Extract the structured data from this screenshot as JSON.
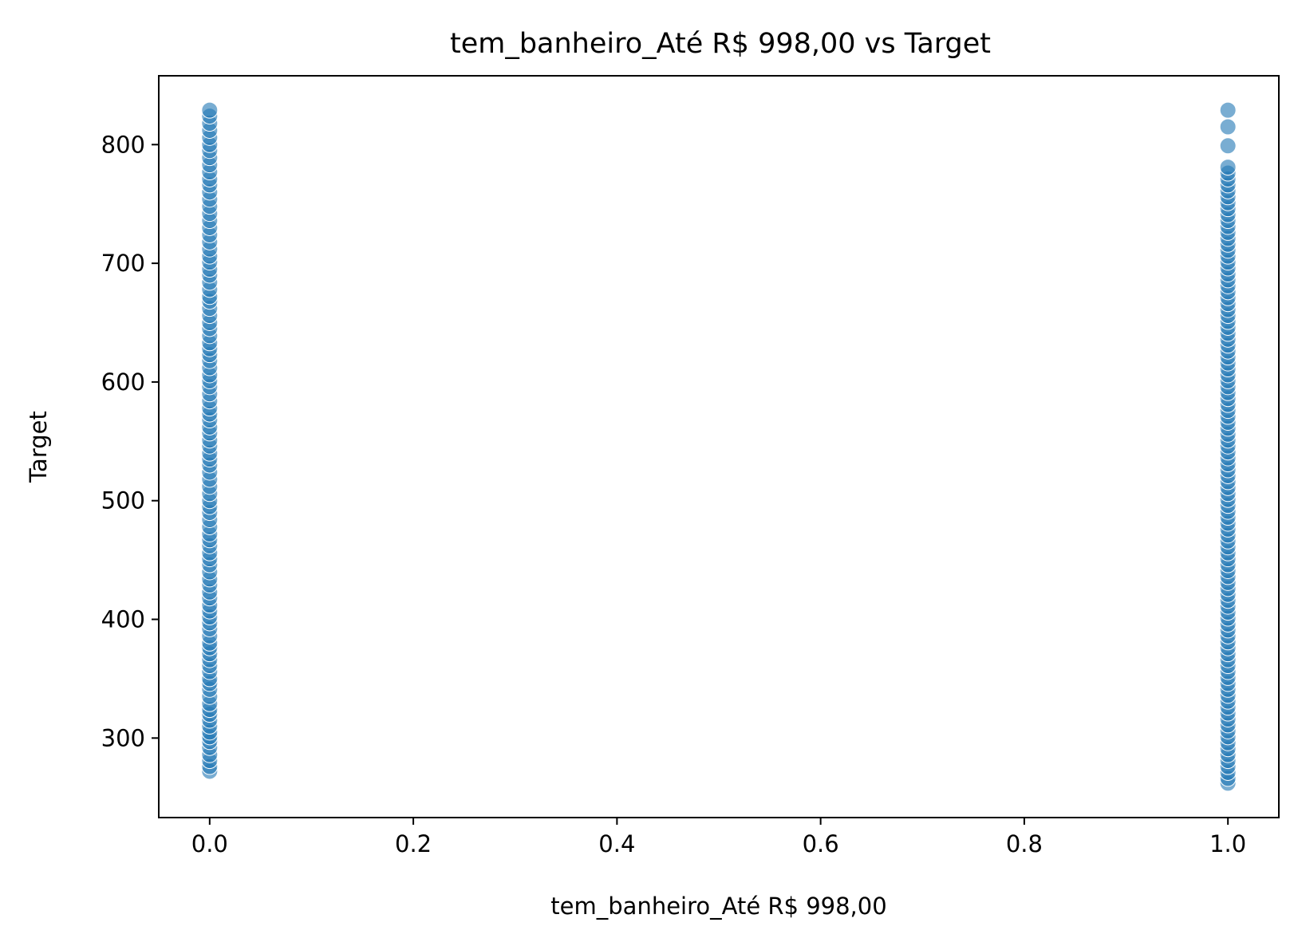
{
  "chart_data": {
    "type": "scatter",
    "title": "tem_banheiro_Até R$ 998,00 vs Target",
    "xlabel": "tem_banheiro_Até R$ 998,00",
    "ylabel": "Target",
    "xlim": [
      -0.05,
      1.05
    ],
    "ylim": [
      233,
      858
    ],
    "xticks": [
      0.0,
      0.2,
      0.4,
      0.6,
      0.8,
      1.0
    ],
    "xtick_labels": [
      "0.0",
      "0.2",
      "0.4",
      "0.6",
      "0.8",
      "1.0"
    ],
    "yticks": [
      300,
      400,
      500,
      600,
      700,
      800
    ],
    "ytick_labels": [
      "300",
      "400",
      "500",
      "600",
      "700",
      "800"
    ],
    "grid": false,
    "marker_color": "#1f77b4",
    "series": [
      {
        "x": 0.0,
        "y_values": [
          272,
          276,
          281,
          286,
          292,
          297,
          301,
          305,
          310,
          315,
          320,
          324,
          329,
          335,
          341,
          346,
          350,
          356,
          361,
          366,
          371,
          376,
          380,
          386,
          392,
          397,
          402,
          407,
          412,
          418,
          423,
          429,
          434,
          440,
          446,
          451,
          456,
          462,
          467,
          472,
          478,
          484,
          490,
          495,
          500,
          506,
          512,
          518,
          524,
          530,
          535,
          540,
          546,
          551,
          557,
          562,
          568,
          573,
          578,
          584,
          590,
          596,
          601,
          606,
          612,
          618,
          623,
          628,
          633,
          639,
          645,
          650,
          656,
          662,
          668,
          672,
          678,
          684,
          690,
          695,
          701,
          706,
          712,
          718,
          724,
          730,
          736,
          742,
          748,
          754,
          760,
          766,
          771,
          777,
          783,
          789,
          795,
          800,
          806,
          812,
          818,
          824,
          829
        ]
      },
      {
        "x": 1.0,
        "y_values": [
          262,
          266,
          271,
          276,
          281,
          286,
          291,
          296,
          301,
          306,
          311,
          316,
          321,
          326,
          331,
          336,
          341,
          346,
          351,
          356,
          361,
          366,
          371,
          376,
          381,
          386,
          391,
          396,
          401,
          406,
          411,
          416,
          421,
          426,
          431,
          436,
          441,
          446,
          451,
          456,
          461,
          466,
          471,
          476,
          481,
          486,
          491,
          496,
          501,
          506,
          511,
          516,
          521,
          526,
          531,
          536,
          541,
          546,
          551,
          556,
          561,
          566,
          571,
          576,
          581,
          586,
          591,
          596,
          601,
          606,
          611,
          616,
          621,
          626,
          631,
          636,
          641,
          646,
          651,
          656,
          661,
          666,
          671,
          676,
          681,
          686,
          691,
          696,
          701,
          706,
          711,
          716,
          721,
          726,
          731,
          736,
          741,
          746,
          751,
          756,
          761,
          766,
          771,
          776,
          781,
          799,
          815,
          829
        ]
      }
    ]
  }
}
